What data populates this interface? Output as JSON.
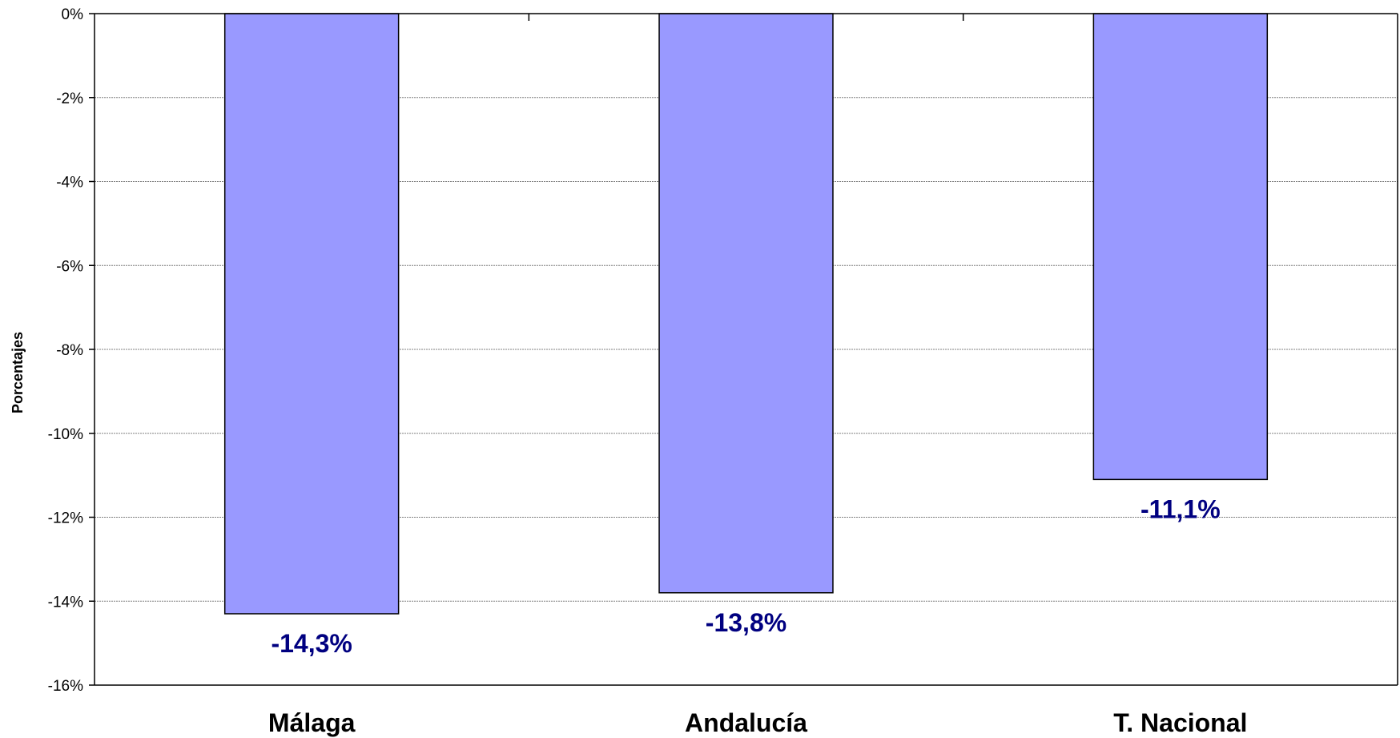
{
  "chart_data": {
    "type": "bar",
    "title": "",
    "xlabel": "",
    "ylabel": "Porcentajes",
    "ylim": [
      -16,
      0
    ],
    "y_ticks": [
      0,
      -2,
      -4,
      -6,
      -8,
      -10,
      -12,
      -14,
      -16
    ],
    "y_tick_labels": [
      "0%",
      "-2%",
      "-4%",
      "-6%",
      "-8%",
      "-10%",
      "-12%",
      "-14%",
      "-16%"
    ],
    "categories": [
      "Málaga",
      "Andalucía",
      "T. Nacional"
    ],
    "values": [
      -14.3,
      -13.8,
      -11.1
    ],
    "data_labels": [
      "-14,3%",
      "-13,8%",
      "-11,1%"
    ],
    "grid": true,
    "legend": "none",
    "colors": {
      "bar_fill": "#9999ff",
      "bar_stroke": "#000000",
      "data_label": "#000080",
      "grid": "#808080"
    }
  }
}
